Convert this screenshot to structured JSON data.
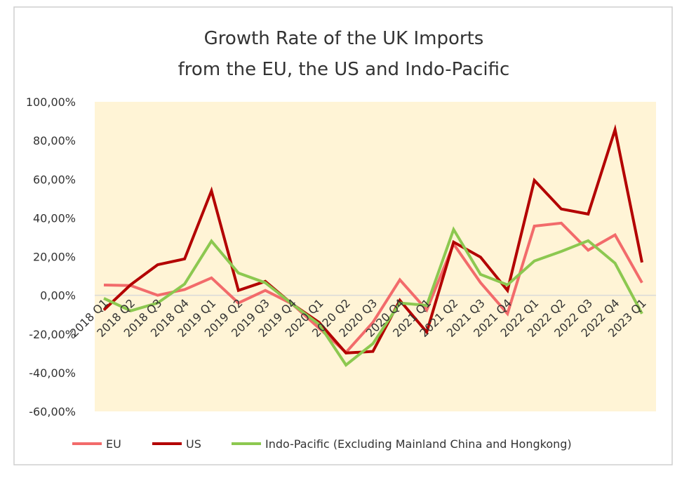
{
  "chart_data": {
    "type": "line",
    "title": [
      "Growth Rate of the UK Imports",
      "from the EU, the US and Indo-Pacific"
    ],
    "xlabel": "",
    "ylabel": "",
    "ylim": [
      -60,
      100
    ],
    "yticks": [
      -60,
      -40,
      -20,
      0,
      20,
      40,
      60,
      80,
      100
    ],
    "ytick_labels": [
      "-60,00%",
      "-40,00%",
      "-20,00%",
      "0,00%",
      "20,00%",
      "40,00%",
      "60,00%",
      "80,00%",
      "100,00%"
    ],
    "categories": [
      "2018 Q1",
      "2018 Q2",
      "2018 Q3",
      "2018 Q4",
      "2019 Q1",
      "2019 Q2",
      "2019 Q3",
      "2019 Q4",
      "2020 Q1",
      "2020 Q2",
      "2020 Q3",
      "2020 Q4",
      "2021 Q1",
      "2021 Q2",
      "2021 Q3",
      "2021 Q4",
      "2022 Q1",
      "2022 Q2",
      "2022 Q3",
      "2022 Q4",
      "2023 Q1"
    ],
    "grid": false,
    "legend": "bottom",
    "plot_background": "#fff4d6",
    "series": [
      {
        "name": "EU",
        "color": "#f26b6b",
        "values": [
          5.3,
          5.0,
          0.0,
          3.0,
          9.0,
          -4.0,
          2.5,
          -4.5,
          -17.0,
          -29.5,
          -14.0,
          8.0,
          -7.6,
          26.5,
          6.5,
          -9.5,
          35.8,
          37.3,
          23.3,
          31.2,
          6.5
        ]
      },
      {
        "name": "US",
        "color": "#b30000",
        "values": [
          -7.6,
          5.5,
          15.8,
          18.8,
          54.0,
          2.5,
          7.2,
          -4.5,
          -14.0,
          -29.8,
          -29.0,
          -2.6,
          -19.0,
          27.5,
          19.7,
          2.5,
          59.4,
          44.6,
          42.0,
          85.6,
          17.0
        ]
      },
      {
        "name": "Indo-Pacific (Excluding Mainland China and Hongkong)",
        "color": "#8cc850",
        "values": [
          -1.6,
          -8.0,
          -4.0,
          5.8,
          28.0,
          11.5,
          6.5,
          -4.5,
          -15.0,
          -36.0,
          -25.0,
          -4.0,
          -5.2,
          34.0,
          10.8,
          5.4,
          17.7,
          22.7,
          28.2,
          16.6,
          -9.5
        ]
      }
    ]
  }
}
